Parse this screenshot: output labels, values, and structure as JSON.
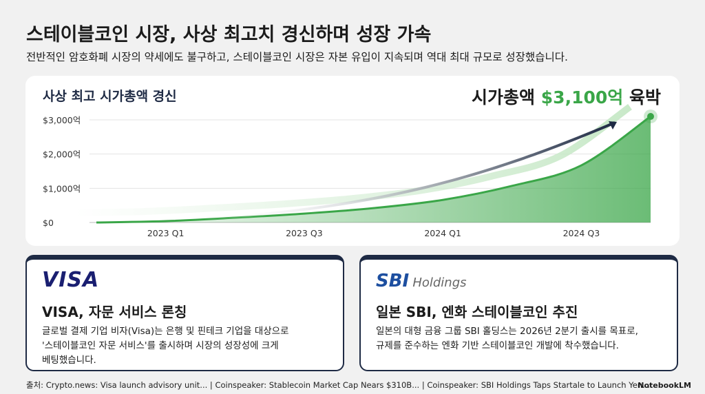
{
  "header": {
    "title": "스테이블코인 시장, 사상 최고치 경신하며 성장 가속",
    "subtitle": "전반적인 암호화폐 시장의 약세에도 불구하고, 스테이블코인 시장은 자본 유입이 지속되며 역대 최대 규모로 성장했습니다."
  },
  "chart_data": {
    "type": "line",
    "title": "사상 최고 시가총액 경신",
    "annotation": {
      "prefix": "시가총액",
      "value_text": "$3,100억",
      "suffix": "육박"
    },
    "categories": [
      null,
      "2023 Q1",
      null,
      "2023 Q3",
      null,
      "2024 Q1",
      null,
      "2024 Q3",
      null
    ],
    "values": [
      0,
      40,
      140,
      260,
      420,
      660,
      1070,
      1670,
      3100
    ],
    "color": "#3aa648",
    "area": true,
    "ylim": [
      0,
      3000
    ],
    "yticks": [
      {
        "value": 0,
        "label": "$0"
      },
      {
        "value": 1000,
        "label": "$1,000억"
      },
      {
        "value": 2000,
        "label": "$2,000억"
      },
      {
        "value": 3000,
        "label": "$3,000억"
      }
    ],
    "grid": true
  },
  "cards": [
    {
      "logo": "VISA",
      "title": "VISA, 자문 서비스 론칭",
      "body": [
        "글로벌 결제 기업 비자(Visa)는 은행 및 핀테크 기업을 대상으로",
        "'스테이블코인 자문 서비스'를 출시하며 시장의 성장성에 크게",
        "베팅했습니다."
      ]
    },
    {
      "logo": "SBI",
      "logo_sub": "Holdings",
      "title": "일본 SBI, 엔화 스테이블코인 추진",
      "body": [
        "일본의 대형 금융 그룹 SBI 홀딩스는 2026년 2분기 출시를 목표로,",
        "규제를 준수하는 엔화 기반 스테이블코인 개발에 착수했습니다."
      ]
    }
  ],
  "sources": {
    "label": "출처:",
    "items": [
      "Crypto.news: Visa launch advisory unit...",
      "Coinspeaker: Stablecoin Market Cap Nears $310B...",
      "Coinspeaker: SBI Holdings Taps Startale to Launch Yen..."
    ]
  },
  "brand": "NotebookLM"
}
